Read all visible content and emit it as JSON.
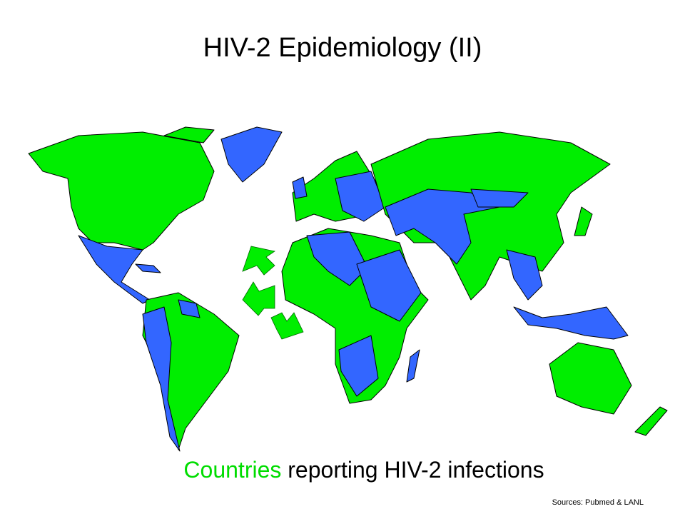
{
  "title": "HIV-2 Epidemiology (II)",
  "caption": {
    "highlight": "Countries",
    "rest": "reporting HIV-2 infections"
  },
  "source": "Sources: Pubmed & LANL"
}
